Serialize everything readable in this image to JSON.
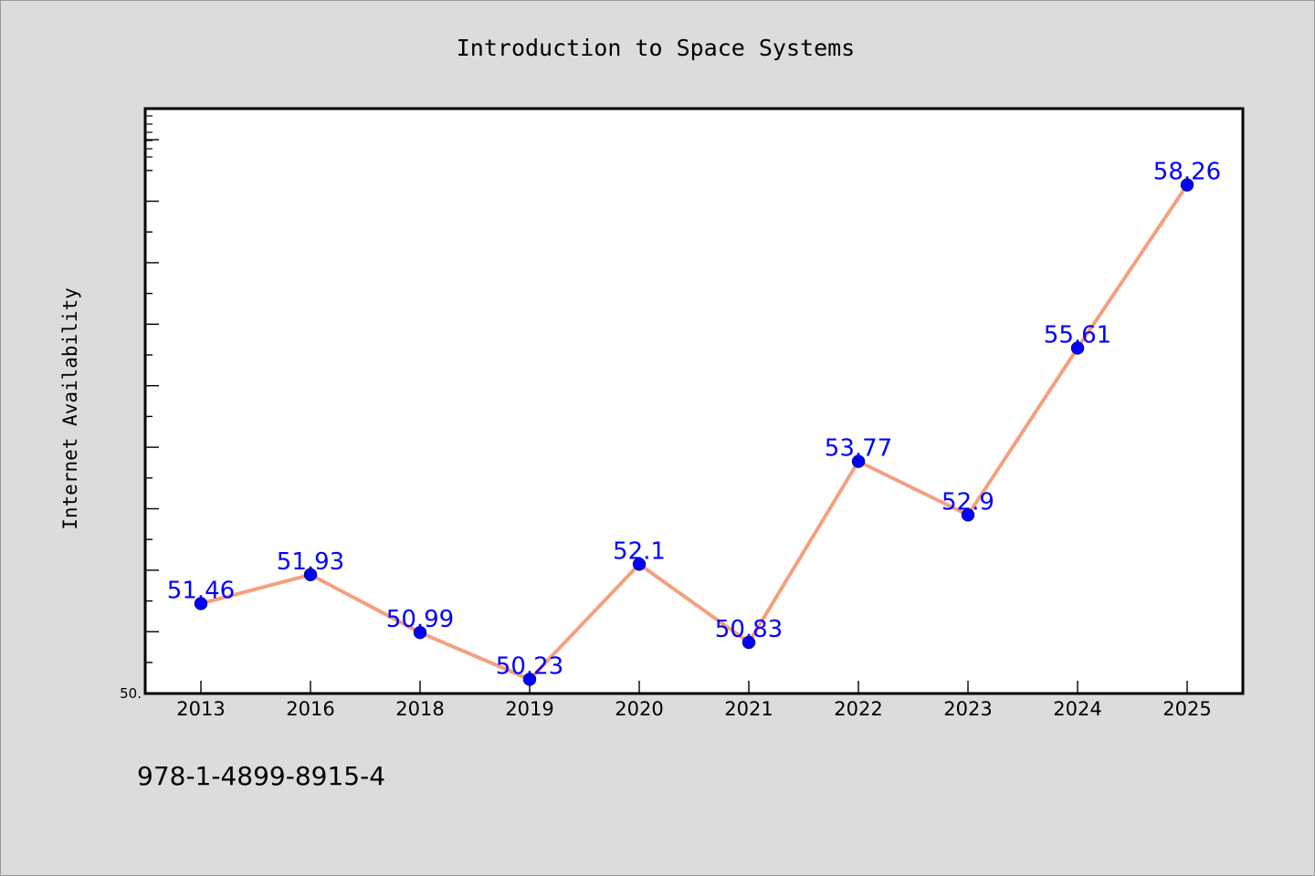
{
  "chart_data": {
    "type": "line",
    "title": "Introduction to Space Systems",
    "xlabel": "",
    "ylabel": "Internet Availability",
    "categories": [
      "2013",
      "2016",
      "2018",
      "2019",
      "2020",
      "2021",
      "2022",
      "2023",
      "2024",
      "2025"
    ],
    "series": [
      {
        "values": [
          51.46,
          51.93,
          50.99,
          50.23,
          52.1,
          50.83,
          53.77,
          52.9,
          55.61,
          58.26
        ],
        "labels": [
          "51.46",
          "51.93",
          "50.99",
          "50.23",
          "52.1",
          "50.83",
          "53.77",
          "52.9",
          "55.61",
          "58.26"
        ]
      }
    ],
    "ylim": [
      50.0,
      59.5
    ],
    "y_tick_labels": [
      "50."
    ],
    "grid": false,
    "legend": "none",
    "colors": {
      "line": "#f4a07e",
      "marker": "#0000ff",
      "point_label": "#0000ff",
      "plot_background": "#ffffff",
      "figure_background": "#dcdcdc"
    }
  },
  "footer": {
    "isbn": "978-1-4899-8915-4"
  }
}
